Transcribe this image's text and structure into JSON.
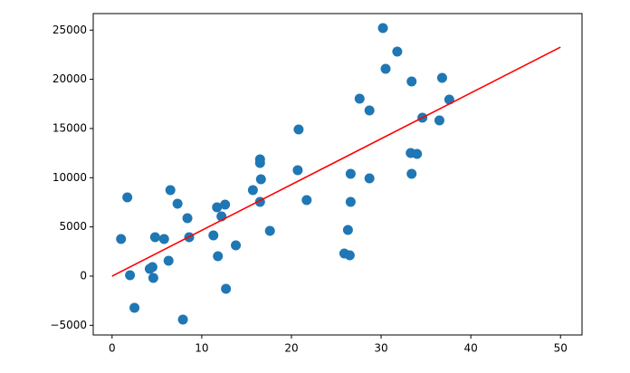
{
  "chart_data": {
    "type": "scatter",
    "xlim": [
      -2.1,
      52.4
    ],
    "ylim": [
      -5980,
      26680
    ],
    "xticks": [
      0,
      10,
      20,
      30,
      40,
      50
    ],
    "yticks": [
      {
        "value": -5000,
        "label": "−5000"
      },
      0,
      5000,
      10000,
      15000,
      20000,
      25000
    ],
    "series": [
      {
        "color": "#1f77b4",
        "x": [
          1.0,
          1.7,
          2.0,
          2.5,
          4.2,
          4.5,
          4.6,
          4.8,
          5.8,
          6.3,
          6.5,
          7.3,
          7.9,
          8.4,
          8.6,
          11.3,
          11.7,
          11.8,
          12.2,
          12.6,
          12.7,
          13.8,
          15.7,
          16.5,
          16.5,
          16.6,
          16.5,
          17.6,
          20.7,
          20.8,
          21.7,
          25.9,
          26.3,
          26.5,
          26.6,
          26.6,
          27.6,
          28.7,
          28.7,
          30.2,
          30.5,
          31.8,
          33.4,
          33.3,
          33.4,
          34.0,
          34.6,
          36.5,
          36.8,
          37.6
        ],
        "y": [
          3770,
          8000,
          90,
          -3220,
          740,
          920,
          -180,
          3960,
          3770,
          1560,
          8740,
          7360,
          -4420,
          5890,
          3960,
          4140,
          6990,
          2020,
          6070,
          7270,
          -1290,
          3130,
          8740,
          11870,
          11500,
          9840,
          7540,
          4600,
          10760,
          14900,
          7730,
          2300,
          4690,
          2120,
          10400,
          7540,
          18030,
          16840,
          9940,
          25210,
          21070,
          22820,
          19780,
          12510,
          10400,
          12420,
          16100,
          15820,
          20150,
          17940
        ]
      }
    ],
    "fit": {
      "color": "#ff0000",
      "x": [
        0,
        50
      ],
      "y": [
        0,
        23270
      ]
    }
  }
}
